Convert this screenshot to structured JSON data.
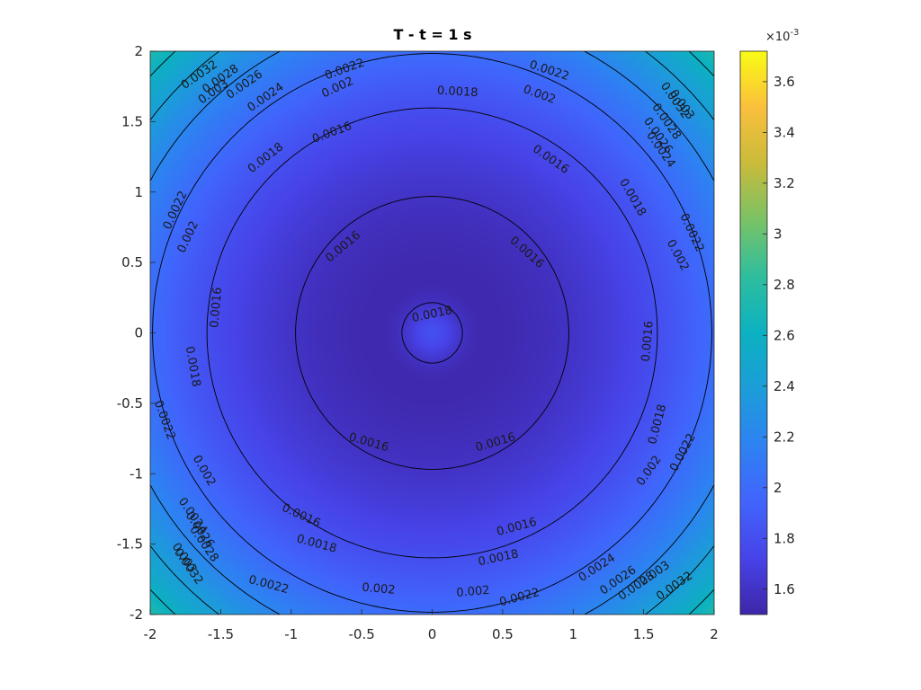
{
  "chart_data": {
    "type": "heatmap",
    "title": "T - t = 1 s",
    "xlabel": "",
    "ylabel": "",
    "xlim": [
      -2,
      2
    ],
    "ylim": [
      -2,
      2
    ],
    "x_ticks": [
      "-2",
      "-1.5",
      "-1",
      "-0.5",
      "0",
      "0.5",
      "1",
      "1.5",
      "2"
    ],
    "y_ticks": [
      "2",
      "1.5",
      "1",
      "0.5",
      "0",
      "-0.5",
      "-1",
      "-1.5",
      "-2"
    ],
    "colorbar": {
      "range": [
        1.5,
        3.72
      ],
      "exponent_label": "×10",
      "exponent": "-3",
      "ticks": [
        "1.6",
        "1.8",
        "2",
        "2.2",
        "2.4",
        "2.6",
        "2.8",
        "3",
        "3.2",
        "3.4",
        "3.6"
      ],
      "colormap": "parula"
    },
    "contour_levels": [
      0.0016,
      0.0018,
      0.002,
      0.0022,
      0.0024,
      0.0026,
      0.0028,
      0.003,
      0.0032
    ],
    "contour_labels": [
      {
        "text": "0.0018",
        "x": 0.0,
        "y": 0.13,
        "angle": -12
      },
      {
        "text": "0.0016",
        "x": -0.63,
        "y": 0.61,
        "angle": -40
      },
      {
        "text": "0.0016",
        "x": 0.67,
        "y": 0.57,
        "angle": 42
      },
      {
        "text": "0.0016",
        "x": -0.45,
        "y": -0.78,
        "angle": 16
      },
      {
        "text": "0.0016",
        "x": 0.45,
        "y": -0.78,
        "angle": -16
      },
      {
        "text": "0.0016",
        "x": -1.53,
        "y": 0.18,
        "angle": -85
      },
      {
        "text": "0.0016",
        "x": 1.53,
        "y": -0.06,
        "angle": -85
      },
      {
        "text": "0.0016",
        "x": -0.71,
        "y": 1.42,
        "angle": -20
      },
      {
        "text": "0.0016",
        "x": 0.84,
        "y": 1.23,
        "angle": 35
      },
      {
        "text": "0.0016",
        "x": -0.93,
        "y": -1.3,
        "angle": 25
      },
      {
        "text": "0.0016",
        "x": 0.6,
        "y": -1.38,
        "angle": -15
      },
      {
        "text": "0.0018",
        "x": 0.18,
        "y": 1.71,
        "angle": 3
      },
      {
        "text": "0.0018",
        "x": -1.18,
        "y": 1.24,
        "angle": -38
      },
      {
        "text": "0.0018",
        "x": 1.42,
        "y": 0.96,
        "angle": 60
      },
      {
        "text": "0.0018",
        "x": -1.7,
        "y": -0.24,
        "angle": 80
      },
      {
        "text": "0.0018",
        "x": 1.6,
        "y": -0.65,
        "angle": -75
      },
      {
        "text": "0.0018",
        "x": -0.82,
        "y": -1.5,
        "angle": 15
      },
      {
        "text": "0.0018",
        "x": 0.47,
        "y": -1.6,
        "angle": -12
      },
      {
        "text": "0.002",
        "x": -0.67,
        "y": 1.74,
        "angle": -25
      },
      {
        "text": "0.002",
        "x": 0.76,
        "y": 1.69,
        "angle": 20
      },
      {
        "text": "0.002",
        "x": -1.73,
        "y": 0.68,
        "angle": -65
      },
      {
        "text": "0.002",
        "x": 1.74,
        "y": 0.55,
        "angle": 62
      },
      {
        "text": "0.002",
        "x": -1.62,
        "y": -0.98,
        "angle": 60
      },
      {
        "text": "0.002",
        "x": 1.54,
        "y": -0.98,
        "angle": -55
      },
      {
        "text": "0.002",
        "x": -0.38,
        "y": -1.82,
        "angle": 5
      },
      {
        "text": "0.002",
        "x": 0.29,
        "y": -1.84,
        "angle": -5
      },
      {
        "text": "0.0022",
        "x": -0.62,
        "y": 1.87,
        "angle": -20
      },
      {
        "text": "0.0022",
        "x": 0.83,
        "y": 1.86,
        "angle": 18
      },
      {
        "text": "0.0022",
        "x": -1.82,
        "y": 0.87,
        "angle": -65
      },
      {
        "text": "0.0022",
        "x": 1.84,
        "y": 0.71,
        "angle": 65
      },
      {
        "text": "0.0022",
        "x": -1.9,
        "y": -0.62,
        "angle": 70
      },
      {
        "text": "0.0022",
        "x": 1.78,
        "y": -0.85,
        "angle": -62
      },
      {
        "text": "0.0022",
        "x": -1.16,
        "y": -1.79,
        "angle": 15
      },
      {
        "text": "0.0022",
        "x": 0.62,
        "y": -1.88,
        "angle": -15
      },
      {
        "text": "0.0024",
        "x": -1.18,
        "y": 1.67,
        "angle": -35
      },
      {
        "text": "0.0024",
        "x": 1.62,
        "y": 1.3,
        "angle": 55
      },
      {
        "text": "0.0024",
        "x": -1.7,
        "y": -1.3,
        "angle": 55
      },
      {
        "text": "0.0024",
        "x": 1.17,
        "y": -1.67,
        "angle": -33
      },
      {
        "text": "0.0026",
        "x": -1.33,
        "y": 1.76,
        "angle": -35
      },
      {
        "text": "0.0026",
        "x": 1.6,
        "y": 1.4,
        "angle": 55
      },
      {
        "text": "0.0026",
        "x": -1.65,
        "y": -1.4,
        "angle": 55
      },
      {
        "text": "0.0026",
        "x": 1.32,
        "y": -1.76,
        "angle": -35
      },
      {
        "text": "0.0028",
        "x": -1.5,
        "y": 1.8,
        "angle": -35
      },
      {
        "text": "0.0028",
        "x": 1.66,
        "y": 1.5,
        "angle": 55
      },
      {
        "text": "0.0028",
        "x": -1.62,
        "y": -1.5,
        "angle": 55
      },
      {
        "text": "0.0028",
        "x": 1.45,
        "y": -1.8,
        "angle": -35
      },
      {
        "text": "0.003",
        "x": -1.55,
        "y": 1.71,
        "angle": -35
      },
      {
        "text": "0.003",
        "x": 1.77,
        "y": 1.62,
        "angle": 55
      },
      {
        "text": "0.003",
        "x": -1.76,
        "y": -1.6,
        "angle": 55
      },
      {
        "text": "0.003",
        "x": 1.58,
        "y": -1.71,
        "angle": -35
      },
      {
        "text": "0.0032",
        "x": -1.65,
        "y": 1.83,
        "angle": -35
      },
      {
        "text": "0.0032",
        "x": 1.72,
        "y": 1.65,
        "angle": 55
      },
      {
        "text": "0.0032",
        "x": -1.73,
        "y": -1.66,
        "angle": 55
      },
      {
        "text": "0.0032",
        "x": 1.72,
        "y": -1.8,
        "angle": -35
      }
    ]
  }
}
